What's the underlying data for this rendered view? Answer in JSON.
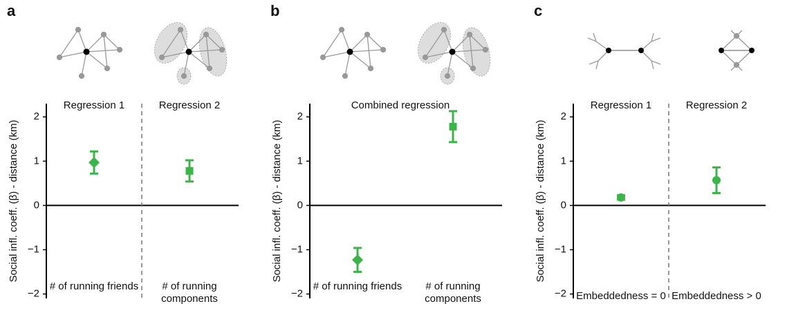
{
  "chart_data": [
    {
      "type": "errorbar",
      "panel": "a",
      "ylabel": "Social infl. coeff. (β) - distance (km)",
      "regions": [
        "Regression 1",
        "Regression 2"
      ],
      "divider": true,
      "categories": [
        "# of running friends",
        "# of running components"
      ],
      "series": [
        {
          "color": "#3cb44a",
          "values": [
            0.97,
            0.78
          ],
          "errors": [
            0.25,
            0.24
          ],
          "markers": [
            "diamond",
            "square"
          ]
        }
      ],
      "ylim": [
        -2.1,
        2.3
      ],
      "yticks": [
        {
          "value": -2,
          "label": "−2"
        },
        {
          "value": -1,
          "label": "−1"
        },
        0,
        1,
        2
      ]
    },
    {
      "type": "errorbar",
      "panel": "b",
      "ylabel": "Social infl. coeff. (β) - distance (km)",
      "regions": [
        "Combined regression"
      ],
      "divider": false,
      "categories": [
        "# of running friends",
        "# of running components"
      ],
      "series": [
        {
          "color": "#3cb44a",
          "values": [
            -1.23,
            1.78
          ],
          "errors": [
            0.27,
            0.35
          ],
          "markers": [
            "diamond",
            "square"
          ]
        }
      ],
      "ylim": [
        -2.1,
        2.3
      ],
      "yticks": [
        {
          "value": -2,
          "label": "−2"
        },
        {
          "value": -1,
          "label": "−1"
        },
        0,
        1,
        2
      ]
    },
    {
      "type": "errorbar",
      "panel": "c",
      "ylabel": "Social infl. coeff. (β) - distance (km)",
      "regions": [
        "Regression 1",
        "Regression 2"
      ],
      "divider": true,
      "categories": [
        "Embeddedness = 0",
        "Embeddedness > 0"
      ],
      "series": [
        {
          "color": "#3cb44a",
          "values": [
            0.18,
            0.57
          ],
          "errors": [
            0.05,
            0.29
          ],
          "markers": [
            "circle",
            "circle"
          ]
        }
      ],
      "ylim": [
        -2.1,
        2.3
      ],
      "yticks": [
        {
          "value": -2,
          "label": "−2"
        },
        {
          "value": -1,
          "label": "−1"
        },
        0,
        1,
        2
      ]
    }
  ]
}
